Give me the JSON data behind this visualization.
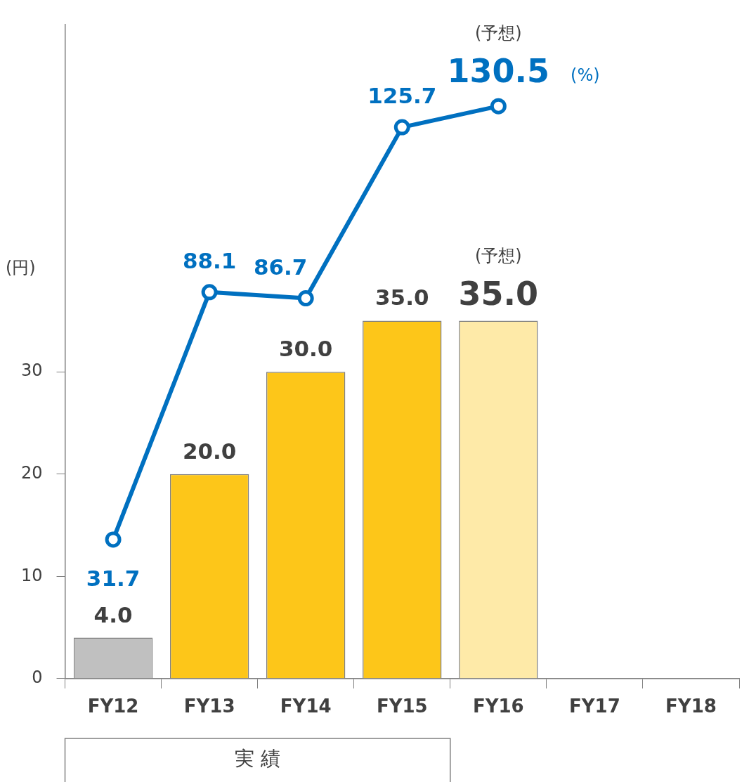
{
  "chart_data": {
    "type": "bar",
    "ylabel": "(円)",
    "y2label": "(%)",
    "categories": [
      "FY12",
      "FY13",
      "FY14",
      "FY15",
      "FY16",
      "FY17",
      "FY18"
    ],
    "series": [
      {
        "colors": [
          "#c0c0c0",
          "#fdc619",
          "#fdc619",
          "#fdc619",
          "#feeaa8",
          "#fdc619",
          "#fdc619"
        ],
        "values": [
          4.0,
          20.0,
          30.0,
          35.0,
          35.0,
          null,
          null
        ],
        "value_labels": [
          "4.0",
          "20.0",
          "30.0",
          "35.0",
          "35.0",
          null,
          null
        ]
      },
      {
        "type": "line",
        "axis": "y2",
        "color": "#0070c0",
        "values": [
          31.7,
          88.1,
          86.7,
          125.7,
          130.5,
          null,
          null
        ],
        "value_labels": [
          "31.7",
          "88.1",
          "86.7",
          "125.7",
          "130.5",
          null,
          null
        ]
      }
    ],
    "ylim": [
      0,
      64
    ],
    "yticks": [
      0,
      10,
      20,
      30
    ],
    "y2lim": [
      0,
      149.2
    ],
    "marker": "circle",
    "grid": false,
    "legend": false,
    "annotations": [
      "(予想)",
      "(予想)",
      "実 績"
    ]
  }
}
